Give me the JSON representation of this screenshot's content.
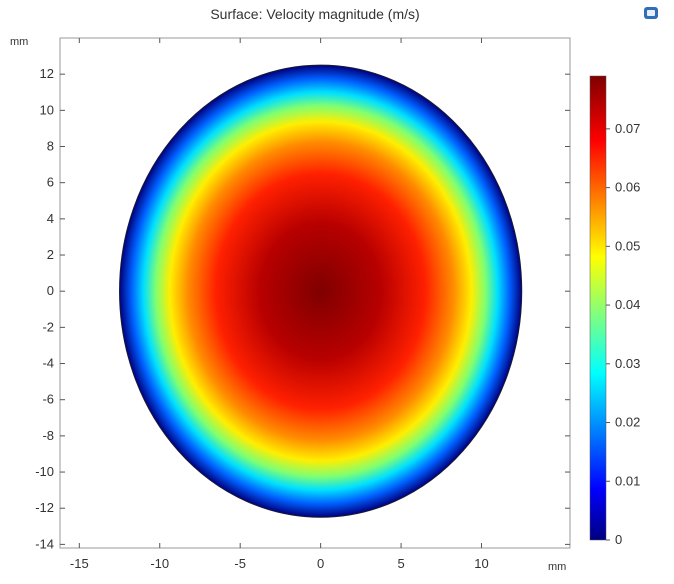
{
  "chart_data": {
    "type": "heatmap",
    "title": "Surface: Velocity magnitude (m/s)",
    "x_unit": "mm",
    "y_unit": "mm",
    "xlim": [
      -16.2,
      15.5
    ],
    "ylim": [
      -14.2,
      14.0
    ],
    "x_ticks": [
      -15,
      -10,
      -5,
      0,
      5,
      10
    ],
    "y_ticks": [
      12,
      10,
      8,
      6,
      4,
      2,
      0,
      -2,
      -4,
      -6,
      -8,
      -10,
      -12,
      -14
    ],
    "domain": {
      "shape": "ellipse",
      "center": [
        0,
        0
      ],
      "semi_axis_x": 12.5,
      "semi_axis_y": 12.5
    },
    "field": {
      "quantity": "Velocity magnitude",
      "unit": "m/s",
      "max_value": 0.079,
      "min_value": 0,
      "max_at": [
        0,
        0
      ]
    },
    "colorbar": {
      "min": 0,
      "max": 0.079,
      "ticks": [
        0.07,
        0.06,
        0.05,
        0.04,
        0.03,
        0.02,
        0.01,
        0
      ],
      "colormap": "rainbow",
      "colors": [
        "#00007f",
        "#0000ff",
        "#00ffff",
        "#ffff00",
        "#ff0000",
        "#7f0000"
      ]
    },
    "grid": false,
    "toolbar_icon": "view-icon"
  }
}
